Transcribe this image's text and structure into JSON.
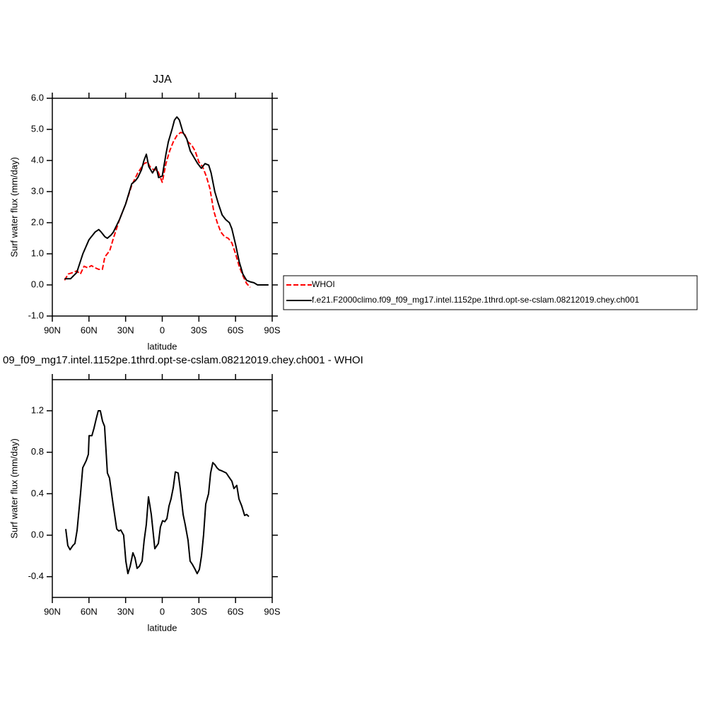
{
  "chart_data": [
    {
      "type": "line",
      "title": "JJA",
      "xlabel": "latitude",
      "ylabel": "Surf water flux (mm/day)",
      "xlim": [
        90,
        -90
      ],
      "xticks": [
        {
          "value": 90,
          "label": "90N"
        },
        {
          "value": 60,
          "label": "60N"
        },
        {
          "value": 30,
          "label": "30N"
        },
        0,
        {
          "value": -30,
          "label": "30S"
        },
        {
          "value": -60,
          "label": "60S"
        },
        {
          "value": -90,
          "label": "90S"
        }
      ],
      "ylim": [
        -1,
        6
      ],
      "yticks": [
        {
          "value": -1,
          "label": "-1.0"
        },
        {
          "value": 0,
          "label": "0.0"
        },
        {
          "value": 1,
          "label": "1.0"
        },
        {
          "value": 2,
          "label": "2.0"
        },
        {
          "value": 3,
          "label": "3.0"
        },
        {
          "value": 4,
          "label": "4.0"
        },
        {
          "value": 5,
          "label": "5.0"
        },
        {
          "value": 6,
          "label": "6.0"
        }
      ],
      "legend": "right",
      "series": [
        {
          "name": "WHOI",
          "color": "#ff0000",
          "dash": true,
          "x": [
            80,
            77,
            73,
            70,
            67,
            64,
            61,
            58,
            55,
            52,
            49,
            47,
            43,
            40,
            35,
            30,
            25,
            20,
            15,
            12,
            10,
            7,
            4,
            2,
            0,
            -3,
            -6,
            -9,
            -12,
            -15,
            -18,
            -21,
            -24,
            -27,
            -30,
            -33,
            -36,
            -39,
            -42,
            -45,
            -48,
            -51,
            -54,
            -57,
            -60,
            -63,
            -66,
            -69,
            -72
          ],
          "values": [
            0.15,
            0.35,
            0.4,
            0.45,
            0.35,
            0.6,
            0.55,
            0.62,
            0.55,
            0.5,
            0.5,
            0.9,
            1.1,
            1.5,
            2.1,
            2.6,
            3.2,
            3.6,
            3.9,
            3.95,
            3.8,
            3.7,
            3.7,
            3.5,
            3.3,
            3.9,
            4.3,
            4.6,
            4.8,
            4.9,
            4.88,
            4.6,
            4.5,
            4.3,
            3.95,
            3.8,
            3.5,
            3.1,
            2.4,
            2.0,
            1.7,
            1.55,
            1.5,
            1.35,
            1.0,
            0.6,
            0.3,
            0.05,
            -0.08
          ]
        },
        {
          "name": "f.e21.F2000climo.f09_f09_mg17.intel.1152pe.1thrd.opt-se-cslam.08212019.chey.ch001",
          "color": "#000000",
          "dash": false,
          "x": [
            80,
            75,
            70,
            65,
            60,
            57,
            55,
            52,
            50,
            47,
            45,
            42,
            40,
            35,
            30,
            25,
            22,
            20,
            17,
            15,
            13,
            11,
            8,
            5,
            3,
            0,
            -3,
            -5,
            -8,
            -10,
            -12,
            -14,
            -17,
            -20,
            -23,
            -26,
            -29,
            -32,
            -35,
            -38,
            -40,
            -43,
            -46,
            -49,
            -52,
            -55,
            -57,
            -60,
            -63,
            -66,
            -69,
            -72,
            -75,
            -78,
            -81,
            -84,
            -87
          ],
          "values": [
            0.2,
            0.2,
            0.4,
            1.0,
            1.45,
            1.6,
            1.7,
            1.78,
            1.7,
            1.55,
            1.5,
            1.6,
            1.7,
            2.1,
            2.6,
            3.25,
            3.35,
            3.45,
            3.7,
            4.0,
            4.2,
            3.8,
            3.6,
            3.8,
            3.45,
            3.5,
            4.2,
            4.6,
            5.0,
            5.3,
            5.4,
            5.3,
            4.9,
            4.7,
            4.3,
            4.1,
            3.9,
            3.75,
            3.9,
            3.85,
            3.6,
            3.0,
            2.6,
            2.25,
            2.1,
            2.0,
            1.8,
            1.3,
            0.75,
            0.35,
            0.15,
            0.1,
            0.07,
            0.0,
            0.0,
            0.0,
            0.0
          ]
        }
      ]
    },
    {
      "type": "line",
      "title": "09_f09_mg17.intel.1152pe.1thrd.opt-se-cslam.08212019.chey.ch001 - WHOI",
      "xlabel": "latitude",
      "ylabel": "Surf water flux (mm/day)",
      "xlim": [
        90,
        -90
      ],
      "xticks": [
        {
          "value": 90,
          "label": "90N"
        },
        {
          "value": 60,
          "label": "60N"
        },
        {
          "value": 30,
          "label": "30N"
        },
        0,
        {
          "value": -30,
          "label": "30S"
        },
        {
          "value": -60,
          "label": "60S"
        },
        {
          "value": -90,
          "label": "90S"
        }
      ],
      "ylim": [
        -0.6,
        1.5
      ],
      "yticks": [
        -0.4,
        {
          "value": 0,
          "label": "0.0"
        },
        0.4,
        0.8,
        1.2
      ],
      "series": [
        {
          "color": "#000000",
          "dash": false,
          "x": [
            79.0,
            77.3,
            75.5,
            73.2,
            71.5,
            69.7,
            66.9,
            65.1,
            62.2,
            60.5,
            59.9,
            57.6,
            55.9,
            54.1,
            52.4,
            50.7,
            48.9,
            47.2,
            44.9,
            43.2,
            40.3,
            37.3,
            35.6,
            33.9,
            31.6,
            29.8,
            28.1,
            26.3,
            24.0,
            22.3,
            20.6,
            18.8,
            16.5,
            14.8,
            13.1,
            11.3,
            9.0,
            6.1,
            3.2,
            1.5,
            -0.3,
            -2.0,
            -3.8,
            -5.5,
            -7.2,
            -9.0,
            -10.7,
            -13.0,
            -14.7,
            -17.1,
            -18.8,
            -21.1,
            -22.8,
            -24.6,
            -26.9,
            -28.6,
            -30.4,
            -32.1,
            -33.8,
            -35.6,
            -37.9,
            -39.6,
            -41.4,
            -43.1,
            -44.8,
            -46.6,
            -48.9,
            -50.6,
            -52.4,
            -54.7,
            -57.0,
            -58.7,
            -61.0,
            -62.8,
            -65.1,
            -67.4,
            -69.1,
            -70.9
          ],
          "values": [
            0.06,
            -0.1,
            -0.14,
            -0.1,
            -0.08,
            0.05,
            0.4,
            0.65,
            0.72,
            0.78,
            0.96,
            0.96,
            1.03,
            1.12,
            1.2,
            1.2,
            1.1,
            1.05,
            0.6,
            0.55,
            0.3,
            0.06,
            0.04,
            0.05,
            0.0,
            -0.25,
            -0.37,
            -0.3,
            -0.17,
            -0.22,
            -0.32,
            -0.3,
            -0.25,
            -0.05,
            0.1,
            0.37,
            0.2,
            -0.13,
            -0.08,
            0.08,
            0.14,
            0.13,
            0.16,
            0.28,
            0.35,
            0.46,
            0.61,
            0.6,
            0.45,
            0.2,
            0.1,
            -0.05,
            -0.25,
            -0.28,
            -0.33,
            -0.37,
            -0.33,
            -0.2,
            0.0,
            0.3,
            0.4,
            0.6,
            0.7,
            0.68,
            0.65,
            0.63,
            0.62,
            0.61,
            0.6,
            0.56,
            0.52,
            0.45,
            0.48,
            0.35,
            0.28,
            0.19,
            0.2,
            0.18
          ]
        }
      ]
    }
  ]
}
